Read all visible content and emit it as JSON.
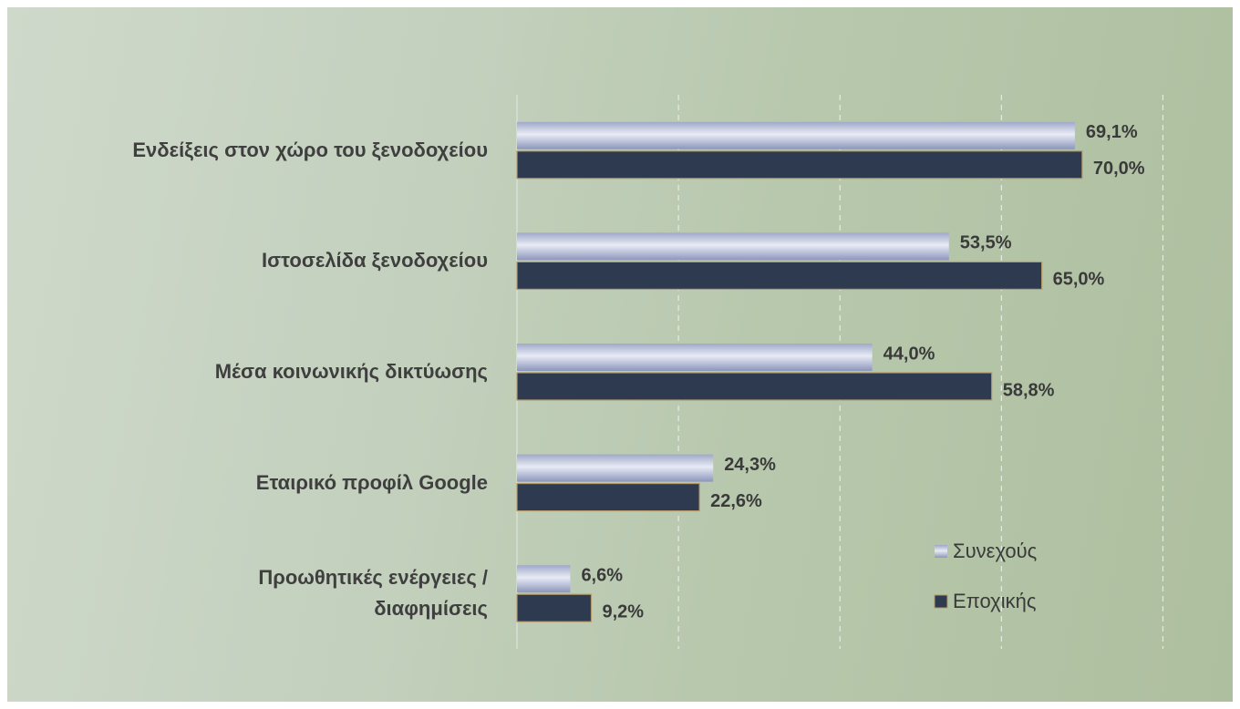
{
  "chart_data": {
    "type": "hbar",
    "categories": [
      "Ενδείξεις στον χώρο του ξενοδοχείου",
      "Ιστοσελίδα ξενοδοχείου",
      "Μέσα κοινωνικής δικτύωσης",
      "Εταιρικό προφίλ Google",
      "Προωθητικές ενέργειες /\nδιαφημίσεις"
    ],
    "series": [
      {
        "name": "Συνεχούς",
        "color": "#c5cbe2",
        "values": [
          69.1,
          53.5,
          44.0,
          24.3,
          6.6
        ],
        "value_labels": [
          "69,1%",
          "53,5%",
          "44,0%",
          "24,3%",
          "6,6%"
        ]
      },
      {
        "name": "Εποχικής",
        "color": "#2e3a4f",
        "values": [
          70.0,
          65.0,
          58.8,
          22.6,
          9.2
        ],
        "value_labels": [
          "70,0%",
          "65,0%",
          "58,8%",
          "22,6%",
          "9,2%"
        ]
      }
    ],
    "xlim": [
      0,
      90
    ],
    "xticks": [
      20,
      40,
      60,
      80
    ],
    "grid": true,
    "legend": "lower right"
  }
}
